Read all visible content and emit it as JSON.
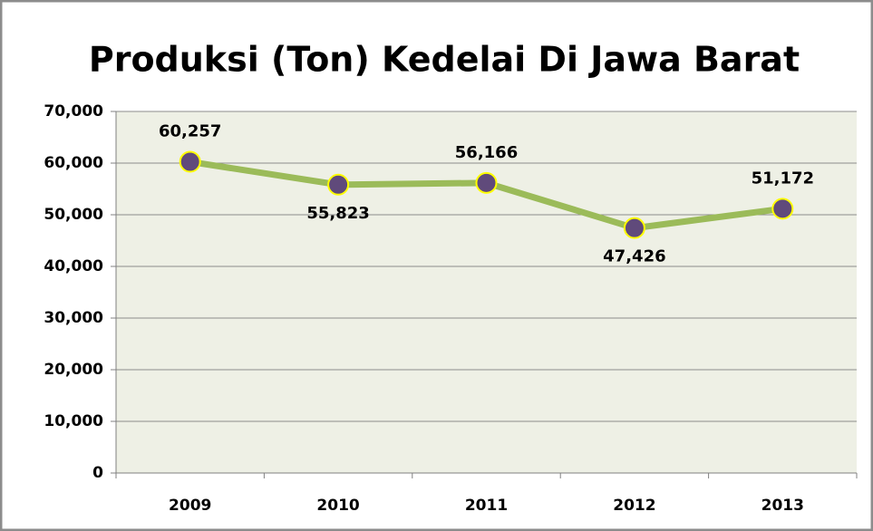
{
  "chart_data": {
    "type": "line",
    "title": "Produksi (Ton) Kedelai Di Jawa Barat",
    "categories": [
      "2009",
      "2010",
      "2011",
      "2012",
      "2013"
    ],
    "series": [
      {
        "name": "Produksi",
        "color": "#9bbb59",
        "marker_color": "#604a7b",
        "marker_edge_color": "#ffff00",
        "values": [
          60257,
          55823,
          56166,
          47426,
          51172
        ],
        "value_labels": [
          "60,257",
          "55,823",
          "56,166",
          "47,426",
          "51,172"
        ]
      }
    ],
    "ylim": [
      0,
      70000
    ],
    "yticks": [
      0,
      {
        "value": 10000,
        "label": "10,000"
      },
      {
        "value": 20000,
        "label": "20,000"
      },
      {
        "value": 30000,
        "label": "30,000"
      },
      {
        "value": 40000,
        "label": "40,000"
      },
      {
        "value": 50000,
        "label": "50,000"
      },
      {
        "value": 60000,
        "label": "60,000"
      },
      {
        "value": 70000,
        "label": "70,000"
      }
    ],
    "grid": true
  }
}
